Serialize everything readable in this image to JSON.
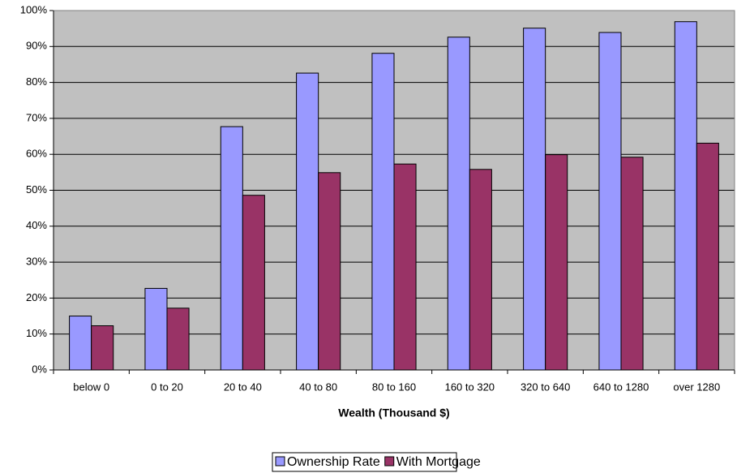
{
  "chart_data": {
    "type": "bar",
    "x_label": "Wealth (Thousand $)",
    "categories": [
      "below 0",
      "0 to 20",
      "20 to 40",
      "40 to 80",
      "80 to 160",
      "160 to 320",
      "320 to 640",
      "640 to 1280",
      "over 1280"
    ],
    "series": [
      {
        "name": "Ownership Rate",
        "color": "#9999ff",
        "values": [
          15,
          22.7,
          67.7,
          82.6,
          88.1,
          92.6,
          95.1,
          93.9,
          96.9
        ]
      },
      {
        "name": "With Mortgage",
        "color": "#993366",
        "values": [
          12.3,
          17.2,
          48.6,
          54.9,
          57.3,
          55.8,
          59.9,
          59.2,
          63.1
        ]
      }
    ],
    "ylim": [
      0,
      100
    ],
    "yticks": [
      {
        "value": 0,
        "label": "0%"
      },
      {
        "value": 10,
        "label": "10%"
      },
      {
        "value": 20,
        "label": "20%"
      },
      {
        "value": 30,
        "label": "30%"
      },
      {
        "value": 40,
        "label": "40%"
      },
      {
        "value": 50,
        "label": "50%"
      },
      {
        "value": 60,
        "label": "60%"
      },
      {
        "value": 70,
        "label": "70%"
      },
      {
        "value": 80,
        "label": "80%"
      },
      {
        "value": 90,
        "label": "90%"
      },
      {
        "value": 100,
        "label": "100%"
      }
    ],
    "grid": true,
    "legend": "bottom"
  }
}
